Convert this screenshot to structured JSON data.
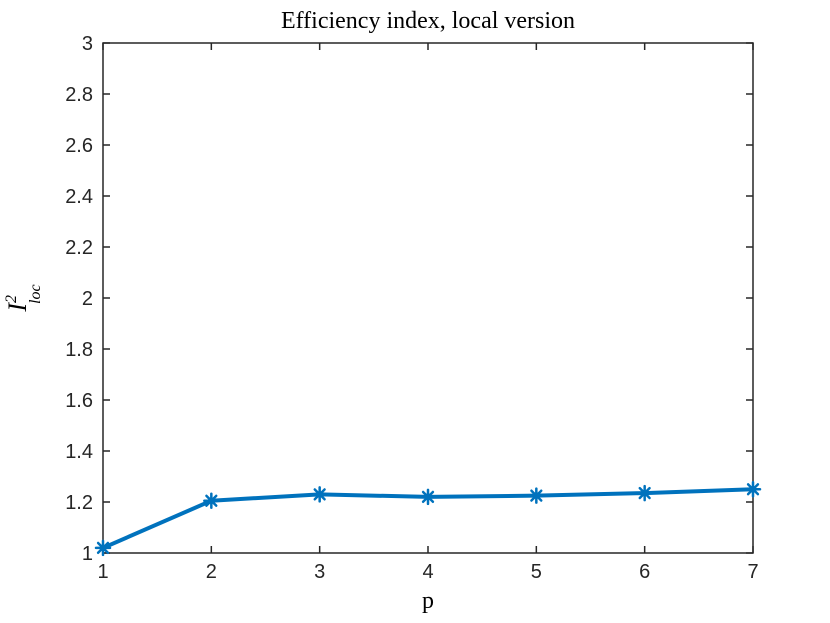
{
  "figure": {
    "background": "#ffffff"
  },
  "chart_data": {
    "type": "line",
    "title": "Efficiency index, local version",
    "xlabel": "p",
    "ylabel": {
      "base": "I",
      "sup": "2",
      "sub": "loc",
      "plain": "I^2_loc"
    },
    "x": [
      1,
      2,
      3,
      4,
      5,
      6,
      7
    ],
    "y": [
      1.02,
      1.205,
      1.23,
      1.22,
      1.225,
      1.235,
      1.25
    ],
    "series_name": "efficiency-index-local",
    "xlim": [
      1,
      7
    ],
    "ylim": [
      1,
      3
    ],
    "xticks": [
      "1",
      "2",
      "3",
      "4",
      "5",
      "6",
      "7"
    ],
    "yticks": [
      "1",
      "1.2",
      "1.4",
      "1.6",
      "1.8",
      "2",
      "2.2",
      "2.4",
      "2.6",
      "2.8",
      "3"
    ],
    "grid": false,
    "legend": null,
    "box": true,
    "tick_direction": "in",
    "line_color": "#0072BD",
    "marker": "asterisk",
    "axis_color": "#262626",
    "title_color": "#000000"
  }
}
